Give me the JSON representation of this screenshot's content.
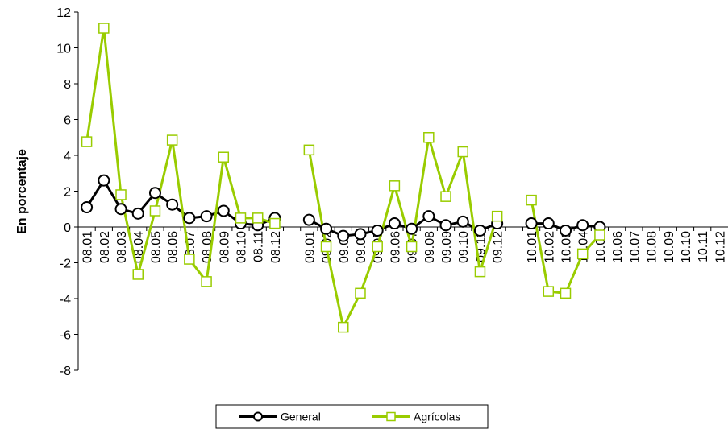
{
  "chart_data": {
    "type": "line",
    "y_label": "En porcentaje",
    "categories": [
      "08.01",
      "08.02",
      "08.03",
      "08.04",
      "08.05",
      "08.06",
      "08.07",
      "08.08",
      "08.09",
      "08.10",
      "08.11",
      "08.12",
      null,
      "09.01",
      "09.02",
      "09.03",
      "09.04",
      "09.05",
      "09.06",
      "09.07",
      "09.08",
      "09.09",
      "09.10",
      "09.11",
      "09.12",
      null,
      "10.01",
      "10.02",
      "10.03",
      "10.04",
      "10.05",
      "10.06",
      "10.07",
      "10.08",
      "10.09",
      "10.10",
      "10.11",
      "10.12"
    ],
    "series": [
      {
        "name": "General",
        "color": "#000000",
        "marker": "circle",
        "values": [
          1.1,
          2.6,
          1.0,
          0.75,
          1.9,
          1.25,
          0.5,
          0.6,
          0.9,
          0.2,
          0.1,
          0.5,
          null,
          0.4,
          -0.1,
          -0.5,
          -0.4,
          -0.2,
          0.2,
          -0.1,
          0.6,
          0.1,
          0.3,
          -0.2,
          0.2,
          null,
          0.2,
          0.2,
          -0.2,
          0.1,
          0,
          null,
          null,
          null,
          null,
          null,
          null,
          null
        ]
      },
      {
        "name": "Agrícolas",
        "color": "#99cc00",
        "marker": "square",
        "values": [
          4.76,
          11.1,
          1.8,
          -2.65,
          0.9,
          4.85,
          -1.8,
          -3.05,
          3.9,
          0.5,
          0.5,
          0.2,
          null,
          4.3,
          -1.1,
          -5.6,
          -3.7,
          -1.1,
          2.3,
          -1.1,
          5.0,
          1.7,
          4.2,
          -2.5,
          0.6,
          null,
          1.5,
          -3.6,
          -3.7,
          -1.5,
          -0.45,
          null,
          null,
          null,
          null,
          null,
          null,
          null
        ]
      }
    ],
    "ylim": [
      -8,
      12
    ],
    "yticks": [
      -8,
      -6,
      -4,
      -2,
      0,
      2,
      4,
      6,
      8,
      10,
      12
    ],
    "grid": false,
    "legend": "bottom"
  }
}
